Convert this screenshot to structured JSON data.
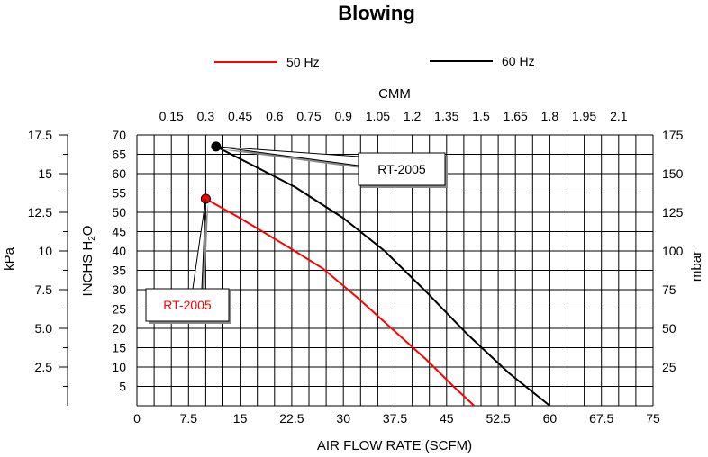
{
  "chart_data": {
    "type": "line",
    "title": "Blowing",
    "xlabel": "AIR FLOW RATE (SCFM)",
    "ylabel": "INCHS H₂O",
    "ylabel_main": "INCHS  H",
    "ylabel_sub": "2",
    "ylabel_tail": "O",
    "xlim": [
      0,
      75
    ],
    "ylim": [
      0,
      70
    ],
    "x_ticks": [
      "0",
      "7.5",
      "15",
      "22.5",
      "30",
      "37.5",
      "45",
      "52.5",
      "60",
      "67.5",
      "75"
    ],
    "y_ticks": [
      "5",
      "10",
      "15",
      "20",
      "25",
      "30",
      "35",
      "40",
      "45",
      "50",
      "55",
      "60",
      "65",
      "70"
    ],
    "top_axis": {
      "label": "CMM",
      "ticks": [
        "0.15",
        "0.3",
        "0.45",
        "0.6",
        "0.75",
        "0.9",
        "1.05",
        "1.2",
        "1.35",
        "1.5",
        "1.65",
        "1.8",
        "1.95",
        "2.1"
      ]
    },
    "left_axis": {
      "label": "kPa",
      "ticks": [
        "2.5",
        "5.0",
        "7.5",
        "10",
        "12.5",
        "15",
        "17.5"
      ]
    },
    "right_axis": {
      "label": "mbar",
      "ticks": [
        "25",
        "50",
        "75",
        "100",
        "125",
        "150",
        "175"
      ]
    },
    "grid": true,
    "legend_position": "top",
    "series": [
      {
        "name": "50 Hz",
        "color": "#ff0000",
        "x": [
          10,
          15,
          22,
          27,
          32,
          37,
          42,
          46,
          49
        ],
        "y": [
          53.5,
          48.5,
          41,
          35.5,
          28,
          20,
          12,
          5,
          0
        ],
        "annotation": "RT-2005"
      },
      {
        "name": "60 Hz",
        "color": "#000000",
        "x": [
          11.5,
          17,
          23,
          30,
          36,
          42,
          48,
          54,
          60
        ],
        "y": [
          67,
          62,
          56.5,
          48.5,
          40,
          29.5,
          18.5,
          8.5,
          0
        ],
        "annotation": "RT-2005"
      }
    ]
  }
}
